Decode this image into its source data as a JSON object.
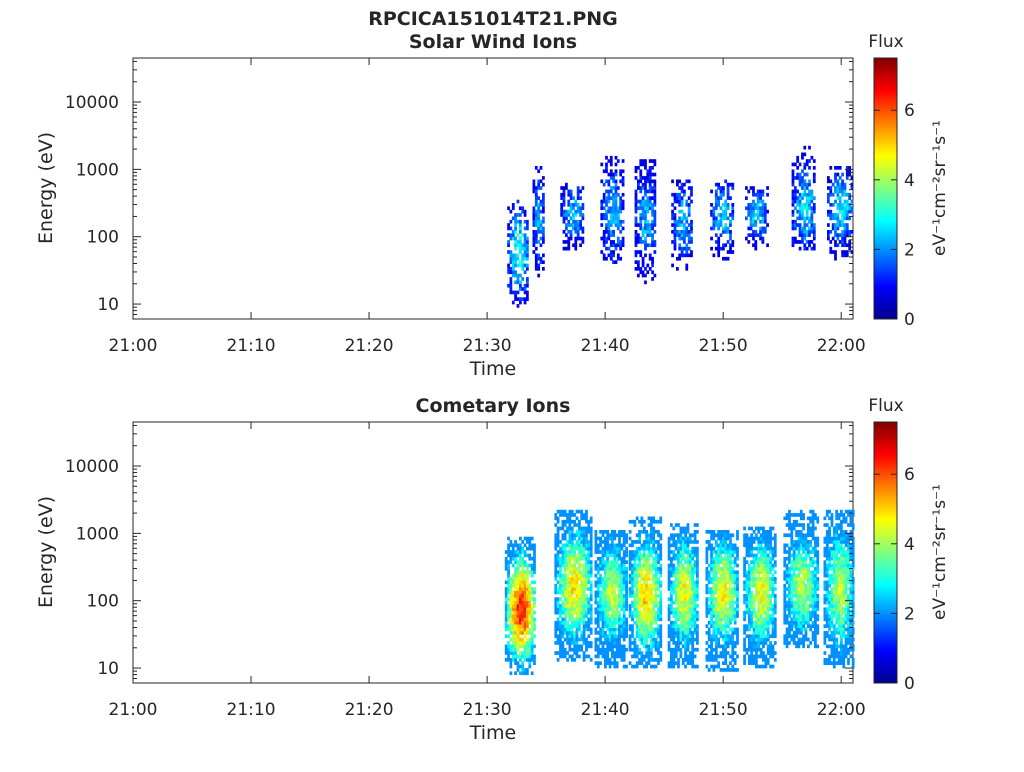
{
  "figure_title": "RPCICA151014T21.PNG",
  "chart_data": [
    {
      "type": "heatmap",
      "title": "Solar Wind Ions",
      "xlabel": "Time",
      "ylabel": "Energy (eV)",
      "x_ticks": [
        "21:00",
        "21:10",
        "21:20",
        "21:30",
        "21:40",
        "21:50",
        "22:00"
      ],
      "xlim": [
        "21:00",
        "22:01"
      ],
      "y_scale": "log",
      "y_ticks": [
        "10",
        "100",
        "1000",
        "10000"
      ],
      "ylim": [
        6,
        45000
      ],
      "colorbar": {
        "title": "Flux",
        "label": "eV⁻¹cm⁻²sr⁻¹s⁻¹",
        "ticks": [
          "0",
          "2",
          "4",
          "6"
        ],
        "range": [
          0,
          7.5
        ],
        "colormap": "jet"
      },
      "bursts": [
        {
          "center_time_min": 32.6,
          "width_min": 1.8,
          "log_e_min": 0.95,
          "log_e_max": 2.5,
          "peak_log_e": 1.75,
          "peak_flux": 3.1
        },
        {
          "center_time_min": 34.3,
          "width_min": 0.9,
          "log_e_min": 1.4,
          "log_e_max": 3.0,
          "peak_log_e": 2.25,
          "peak_flux": 2.2
        },
        {
          "center_time_min": 37.2,
          "width_min": 2.0,
          "log_e_min": 1.8,
          "log_e_max": 2.75,
          "peak_log_e": 2.3,
          "peak_flux": 2.4
        },
        {
          "center_time_min": 40.6,
          "width_min": 2.0,
          "log_e_min": 1.6,
          "log_e_max": 3.2,
          "peak_log_e": 2.35,
          "peak_flux": 2.3
        },
        {
          "center_time_min": 43.4,
          "width_min": 1.8,
          "log_e_min": 1.3,
          "log_e_max": 3.1,
          "peak_log_e": 2.25,
          "peak_flux": 2.2
        },
        {
          "center_time_min": 46.5,
          "width_min": 1.8,
          "log_e_min": 1.5,
          "log_e_max": 2.8,
          "peak_log_e": 2.2,
          "peak_flux": 2.3
        },
        {
          "center_time_min": 49.9,
          "width_min": 2.0,
          "log_e_min": 1.6,
          "log_e_max": 2.8,
          "peak_log_e": 2.3,
          "peak_flux": 2.4
        },
        {
          "center_time_min": 52.8,
          "width_min": 1.9,
          "log_e_min": 1.8,
          "log_e_max": 2.7,
          "peak_log_e": 2.3,
          "peak_flux": 2.5
        },
        {
          "center_time_min": 56.8,
          "width_min": 2.0,
          "log_e_min": 1.8,
          "log_e_max": 3.3,
          "peak_log_e": 2.4,
          "peak_flux": 2.6
        },
        {
          "center_time_min": 59.9,
          "width_min": 2.2,
          "log_e_min": 1.65,
          "log_e_max": 3.0,
          "peak_log_e": 2.4,
          "peak_flux": 2.7
        }
      ]
    },
    {
      "type": "heatmap",
      "title": "Cometary Ions",
      "xlabel": "Time",
      "ylabel": "Energy (eV)",
      "x_ticks": [
        "21:00",
        "21:10",
        "21:20",
        "21:30",
        "21:40",
        "21:50",
        "22:00"
      ],
      "xlim": [
        "21:00",
        "22:01"
      ],
      "y_scale": "log",
      "y_ticks": [
        "10",
        "100",
        "1000",
        "10000"
      ],
      "ylim": [
        6,
        45000
      ],
      "colorbar": {
        "title": "Flux",
        "label": "eV⁻¹cm⁻²sr⁻¹s⁻¹",
        "ticks": [
          "0",
          "2",
          "4",
          "6"
        ],
        "range": [
          0,
          7.5
        ],
        "colormap": "jet"
      },
      "bursts": [
        {
          "center_time_min": 32.8,
          "width_min": 2.6,
          "log_e_min": 0.9,
          "log_e_max": 2.9,
          "peak_log_e": 1.85,
          "peak_flux": 6.3
        },
        {
          "center_time_min": 37.3,
          "width_min": 3.2,
          "log_e_min": 1.1,
          "log_e_max": 3.3,
          "peak_log_e": 2.2,
          "peak_flux": 4.8
        },
        {
          "center_time_min": 40.5,
          "width_min": 2.8,
          "log_e_min": 1.0,
          "log_e_max": 3.0,
          "peak_log_e": 2.1,
          "peak_flux": 4.2
        },
        {
          "center_time_min": 43.4,
          "width_min": 2.8,
          "log_e_min": 1.0,
          "log_e_max": 3.2,
          "peak_log_e": 2.05,
          "peak_flux": 5.0
        },
        {
          "center_time_min": 46.6,
          "width_min": 2.6,
          "log_e_min": 1.0,
          "log_e_max": 3.1,
          "peak_log_e": 2.1,
          "peak_flux": 4.6
        },
        {
          "center_time_min": 49.9,
          "width_min": 2.8,
          "log_e_min": 0.95,
          "log_e_max": 3.0,
          "peak_log_e": 2.1,
          "peak_flux": 4.7
        },
        {
          "center_time_min": 53.1,
          "width_min": 2.8,
          "log_e_min": 1.0,
          "log_e_max": 3.05,
          "peak_log_e": 2.1,
          "peak_flux": 4.6
        },
        {
          "center_time_min": 56.6,
          "width_min": 3.0,
          "log_e_min": 1.3,
          "log_e_max": 3.3,
          "peak_log_e": 2.2,
          "peak_flux": 4.1
        },
        {
          "center_time_min": 59.8,
          "width_min": 2.6,
          "log_e_min": 1.0,
          "log_e_max": 3.3,
          "peak_log_e": 2.15,
          "peak_flux": 4.2
        }
      ]
    }
  ]
}
